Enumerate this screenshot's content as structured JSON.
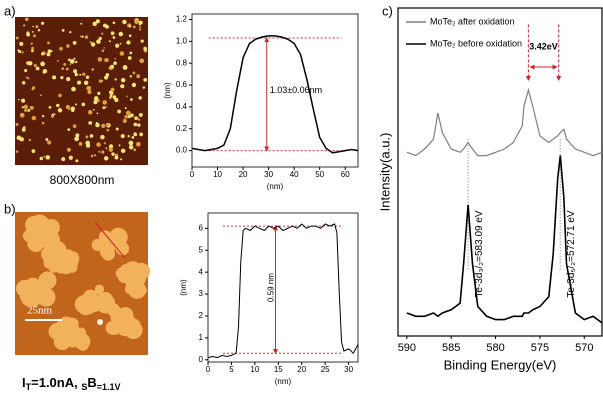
{
  "panels": [
    {
      "label": "a)",
      "caption": "800X800nm"
    },
    {
      "label": "b)",
      "caption_parts": [
        "I",
        "T",
        "=1.0nA, ",
        "S",
        "B",
        "=1.1V"
      ],
      "scale_bar": "25nm"
    },
    {
      "label": "c)"
    }
  ],
  "chart_data": [
    {
      "type": "line",
      "x_label": "(nm)",
      "y_label": "(nm)",
      "annotation": "1.03±0.06nm",
      "color": "#000000",
      "ref_color": "#c0392b",
      "x": [
        0,
        2.5,
        5,
        7.5,
        10,
        12.5,
        15,
        17.5,
        20,
        22.5,
        25,
        27.5,
        30,
        32.5,
        35,
        37.5,
        40,
        42.5,
        45,
        47.5,
        50,
        52.5,
        55,
        57.5,
        60,
        62.5,
        65
      ],
      "values": [
        0.02,
        0.01,
        0.0,
        0.01,
        0.02,
        0.05,
        0.2,
        0.55,
        0.85,
        0.98,
        1.02,
        1.04,
        1.05,
        1.05,
        1.04,
        1.02,
        0.98,
        0.88,
        0.65,
        0.38,
        0.12,
        0.02,
        -0.02,
        -0.01,
        0.0,
        0.01,
        0.0
      ],
      "hlines": [
        1.03,
        0.0
      ],
      "xlim": [
        0,
        65
      ],
      "ylim": [
        -0.15,
        1.25
      ],
      "xticks": [
        0,
        10,
        20,
        30,
        40,
        50,
        60
      ],
      "yticks": [
        {
          "value": 0,
          "label": "0.0"
        },
        0.2,
        0.4,
        0.6,
        0.8,
        {
          "value": 1,
          "label": "1.0"
        },
        1.2
      ]
    },
    {
      "type": "line",
      "x_label": "(nm)",
      "y_label": "(nm)",
      "annotation": "0.59 nm",
      "color": "#000000",
      "ref_color": "#c0392b",
      "x": [
        0,
        1,
        2,
        3,
        4,
        5,
        6,
        6.5,
        7,
        7.5,
        8,
        9,
        10,
        11,
        12,
        13,
        14,
        15,
        16,
        17,
        18,
        19,
        20,
        21,
        22,
        23,
        24,
        25,
        26,
        27,
        27.5,
        28,
        28.5,
        29,
        30,
        31,
        32
      ],
      "values": [
        0.1,
        0.15,
        0.1,
        0.2,
        0.15,
        0.2,
        0.3,
        1.5,
        4.5,
        5.9,
        6.0,
        5.9,
        6.1,
        6.0,
        5.9,
        6.1,
        6.0,
        6.1,
        5.9,
        6.0,
        6.1,
        6.0,
        6.2,
        6.0,
        6.1,
        6.1,
        6.0,
        6.2,
        6.1,
        6.2,
        5.8,
        3.0,
        0.8,
        0.4,
        0.5,
        0.3,
        0.7
      ],
      "hlines": [
        6.1,
        0.3
      ],
      "xlim": [
        0,
        32
      ],
      "ylim": [
        -0.1,
        6.7
      ],
      "xticks": [
        0,
        5,
        10,
        15,
        20,
        25,
        30
      ],
      "yticks": [
        0,
        1,
        2,
        3,
        4,
        5,
        6
      ]
    },
    {
      "type": "spectrum",
      "x_label": "Binding Energy(eV)",
      "y_label": "Intensity(a.u.)",
      "annotations": [
        "3.42eV",
        "Te-3d₃/₂=583.09 eV",
        "Te-3d₅/₂=572.71 eV"
      ],
      "peak_lines": [
        583.09,
        572.71
      ],
      "marker_lines": [
        576.3,
        572.88
      ],
      "ref_color": "#d0202a",
      "x": [
        590,
        589,
        588,
        587,
        586.5,
        586,
        585,
        584,
        583.6,
        583.1,
        582.6,
        582,
        581,
        580,
        579,
        578,
        577,
        576.8,
        576.3,
        575.8,
        575,
        574,
        573.5,
        573,
        572.7,
        572.3,
        572,
        571,
        570,
        569,
        568
      ],
      "series": [
        {
          "name": "MoTe₂ after oxidation",
          "color": "#7f7f7f",
          "values": [
            56,
            55,
            57,
            60,
            68,
            62,
            57,
            56,
            57,
            59,
            57,
            55,
            55,
            56,
            57,
            59,
            64,
            70,
            75,
            70,
            61,
            59,
            60,
            61,
            62,
            63,
            60,
            57,
            56,
            55,
            56
          ]
        },
        {
          "name": "MoTe₂ before oxidation",
          "color": "#000000",
          "values": [
            7,
            6,
            6,
            7,
            6,
            7,
            8,
            10,
            22,
            40,
            22,
            9,
            6,
            5,
            5,
            6,
            6,
            7,
            7,
            8,
            9,
            12,
            25,
            48,
            55,
            42,
            22,
            7,
            5,
            6,
            4
          ]
        }
      ],
      "xlim": [
        591,
        568
      ],
      "ylim": [
        0,
        100
      ],
      "xticks": [
        590,
        585,
        580,
        575,
        570
      ]
    }
  ]
}
